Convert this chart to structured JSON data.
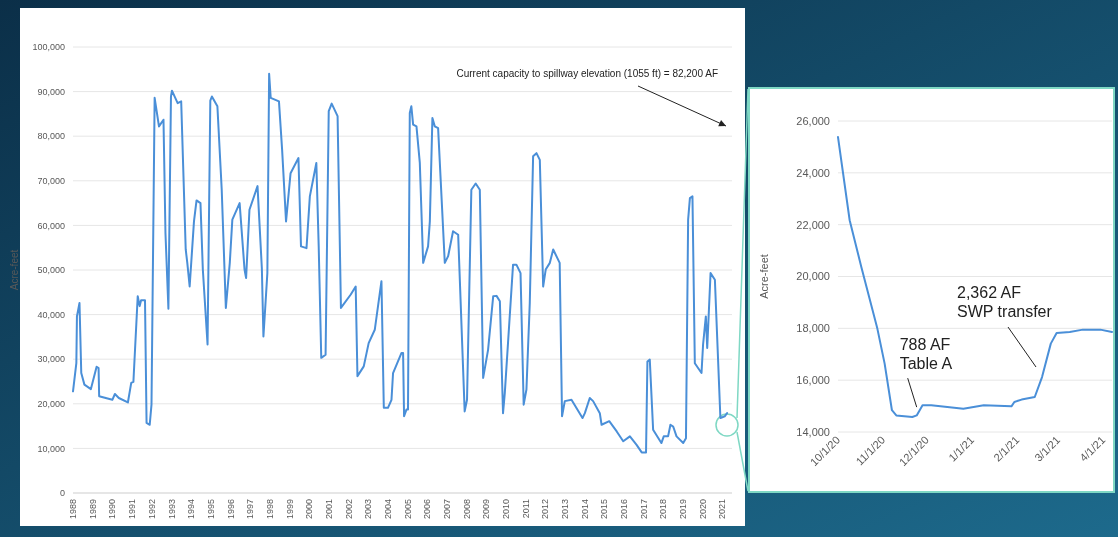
{
  "chart_data": [
    {
      "type": "line",
      "ylabel": "Acre-feet",
      "color": "#4a8fd8",
      "grid": "y",
      "xlim": [
        1988,
        2021.5
      ],
      "ylim": [
        0,
        100000
      ],
      "xticks": [
        1988,
        1989,
        1990,
        1991,
        1992,
        1993,
        1994,
        1995,
        1996,
        1997,
        1998,
        1999,
        2000,
        2001,
        2002,
        2003,
        2004,
        2005,
        2006,
        2007,
        2008,
        2009,
        2010,
        2011,
        2012,
        2013,
        2014,
        2015,
        2016,
        2017,
        2018,
        2019,
        2020,
        2021
      ],
      "yticks": [
        0,
        {
          "value": 10000,
          "label": "10,000"
        },
        {
          "value": 20000,
          "label": "20,000"
        },
        {
          "value": 30000,
          "label": "30,000"
        },
        {
          "value": 40000,
          "label": "40,000"
        },
        {
          "value": 50000,
          "label": "50,000"
        },
        {
          "value": 60000,
          "label": "60,000"
        },
        {
          "value": 70000,
          "label": "70,000"
        },
        {
          "value": 80000,
          "label": "80,000"
        },
        {
          "value": 90000,
          "label": "90,000"
        },
        {
          "value": 100000,
          "label": "100,000"
        }
      ],
      "x": [
        1988.0,
        1988.17,
        1988.2,
        1988.33,
        1988.42,
        1988.58,
        1988.91,
        1989.2,
        1989.3,
        1989.33,
        1990.0,
        1990.13,
        1990.33,
        1990.79,
        1990.96,
        1991.07,
        1991.29,
        1991.39,
        1991.46,
        1991.66,
        1991.74,
        1991.9,
        1991.99,
        1992.15,
        1992.37,
        1992.6,
        1992.7,
        1992.85,
        1992.98,
        1993.03,
        1993.32,
        1993.5,
        1993.73,
        1993.81,
        1993.93,
        1994.15,
        1994.28,
        1994.48,
        1994.6,
        1994.84,
        1994.98,
        1995.06,
        1995.34,
        1995.56,
        1995.77,
        1995.97,
        1996.1,
        1996.47,
        1996.72,
        1996.8,
        1996.97,
        1997.38,
        1997.6,
        1997.68,
        1997.76,
        1997.88,
        1997.97,
        1998.05,
        1998.47,
        1998.63,
        1998.83,
        1999.06,
        1999.46,
        1999.59,
        1999.87,
        2000.04,
        2000.37,
        2000.49,
        2000.62,
        2000.84,
        2001.0,
        2001.15,
        2001.45,
        2001.62,
        2002.12,
        2002.37,
        2002.46,
        2002.78,
        2003.03,
        2003.34,
        2003.68,
        2003.8,
        2004.01,
        2004.19,
        2004.27,
        2004.7,
        2004.78,
        2004.83,
        2004.95,
        2005.03,
        2005.12,
        2005.2,
        2005.29,
        2005.46,
        2005.63,
        2005.8,
        2006.05,
        2006.14,
        2006.27,
        2006.39,
        2006.56,
        2006.9,
        2007.07,
        2007.32,
        2007.58,
        2007.91,
        2008.03,
        2008.25,
        2008.47,
        2008.68,
        2008.85,
        2009.1,
        2009.36,
        2009.53,
        2009.7,
        2009.86,
        2009.95,
        2010.37,
        2010.54,
        2010.75,
        2010.91,
        2011.05,
        2011.22,
        2011.39,
        2011.56,
        2011.73,
        2011.9,
        2012.03,
        2012.24,
        2012.41,
        2012.74,
        2012.86,
        2013.0,
        2013.34,
        2013.9,
        2014.02,
        2014.27,
        2014.44,
        2014.78,
        2014.87,
        2015.26,
        2015.64,
        2015.97,
        2016.31,
        2016.65,
        2016.91,
        2017.13,
        2017.2,
        2017.32,
        2017.49,
        2017.91,
        2018.03,
        2018.25,
        2018.37,
        2018.51,
        2018.68,
        2019.02,
        2019.16,
        2019.27,
        2019.36,
        2019.49,
        2019.61,
        2019.95,
        2020.03,
        2020.17,
        2020.24,
        2020.41,
        2020.63,
        2020.91,
        2021.13,
        2021.25
      ],
      "values": [
        22800,
        29100,
        39600,
        42600,
        26900,
        24300,
        23300,
        28300,
        28000,
        21700,
        20900,
        22200,
        21300,
        20300,
        24700,
        24900,
        44100,
        41900,
        43200,
        43200,
        15700,
        15300,
        19800,
        88600,
        82200,
        83700,
        58300,
        41300,
        88900,
        90200,
        87400,
        87800,
        54600,
        51600,
        46300,
        60900,
        65600,
        65000,
        50100,
        33300,
        88000,
        88900,
        86700,
        68000,
        41500,
        51600,
        61300,
        65000,
        50100,
        48200,
        63500,
        68800,
        50400,
        35100,
        40700,
        49300,
        94000,
        88600,
        87800,
        77000,
        60900,
        71700,
        75100,
        55300,
        54900,
        66500,
        74000,
        55300,
        30300,
        31000,
        85600,
        87300,
        84500,
        41500,
        44500,
        46300,
        26200,
        28400,
        33600,
        36600,
        47500,
        19100,
        19100,
        20900,
        26900,
        31400,
        31400,
        17200,
        18700,
        18700,
        85200,
        86700,
        82600,
        82200,
        74000,
        51600,
        55300,
        60900,
        84100,
        82200,
        81800,
        51600,
        53100,
        58700,
        57900,
        18300,
        20900,
        68000,
        69400,
        68000,
        25800,
        32100,
        44100,
        44200,
        43000,
        17900,
        22400,
        51200,
        51200,
        49300,
        19800,
        23200,
        42600,
        75500,
        76200,
        74700,
        46300,
        50100,
        51600,
        54600,
        51600,
        17200,
        20600,
        20900,
        16800,
        17900,
        21300,
        20600,
        17900,
        15300,
        16100,
        13800,
        11600,
        12700,
        10800,
        9100,
        9100,
        29500,
        29900,
        14200,
        11200,
        12700,
        12700,
        15300,
        14900,
        12700,
        11200,
        12300,
        61300,
        66100,
        66500,
        29100,
        26900,
        33300,
        39600,
        32500,
        49300,
        47800,
        16800,
        17200,
        17900
      ],
      "annotations": [
        "Current capacity to spillway elevation (1055 ft) = 82,200 AF"
      ]
    },
    {
      "type": "line",
      "ylabel": "Acre-feet",
      "color": "#4a8fd8",
      "grid": "y",
      "xlim": [
        "2020-10-01",
        "2021-04-07"
      ],
      "ylim": [
        14000,
        26000
      ],
      "xticks": [
        {
          "value": "2020-10-01",
          "label": "10/1/20"
        },
        {
          "value": "2020-11-01",
          "label": "11/1/20"
        },
        {
          "value": "2020-12-01",
          "label": "12/1/20"
        },
        {
          "value": "2021-01-01",
          "label": "1/1/21"
        },
        {
          "value": "2021-02-01",
          "label": "2/1/21"
        },
        {
          "value": "2021-03-01",
          "label": "3/1/21"
        },
        {
          "value": "2021-04-01",
          "label": "4/1/21"
        }
      ],
      "yticks": [
        {
          "value": 14000,
          "label": "14,000"
        },
        {
          "value": 16000,
          "label": "16,000"
        },
        {
          "value": 18000,
          "label": "18,000"
        },
        {
          "value": 20000,
          "label": "20,000"
        },
        {
          "value": 22000,
          "label": "22,000"
        },
        {
          "value": 24000,
          "label": "24,000"
        },
        {
          "value": 26000,
          "label": "26,000"
        }
      ],
      "x": [
        "2020-10-01",
        "2020-10-09",
        "2020-10-17",
        "2020-10-28",
        "2020-11-02",
        "2020-11-07",
        "2020-11-10",
        "2020-11-21",
        "2020-11-24",
        "2020-11-28",
        "2020-12-04",
        "2020-12-26",
        "2021-01-09",
        "2021-01-28",
        "2021-01-30",
        "2021-02-04",
        "2021-02-13",
        "2021-02-18",
        "2021-02-24",
        "2021-02-28",
        "2021-03-09",
        "2021-03-18",
        "2021-03-30",
        "2021-04-07"
      ],
      "values": [
        25380,
        22170,
        20370,
        17990,
        16640,
        14840,
        14640,
        14580,
        14640,
        15030,
        15030,
        14900,
        15030,
        14990,
        15160,
        15250,
        15350,
        16120,
        17410,
        17820,
        17860,
        17950,
        17950,
        17860
      ],
      "annotations": [
        {
          "text": "788 AF\nTable A",
          "x": "2020-11-24",
          "y": 14960
        },
        "2,362 AF\nSWP transfer"
      ]
    }
  ]
}
